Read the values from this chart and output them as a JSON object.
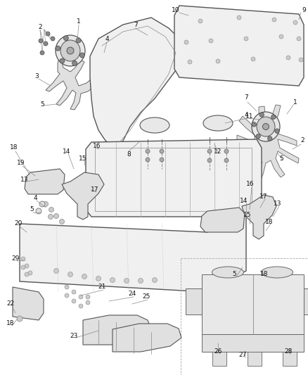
{
  "fig_width": 4.39,
  "fig_height": 5.33,
  "dpi": 100,
  "bg": "#ffffff",
  "lc": "#555555",
  "lw": 0.8,
  "label_fs": 6.5,
  "leader_color": "#888888",
  "leader_lw": 0.5
}
